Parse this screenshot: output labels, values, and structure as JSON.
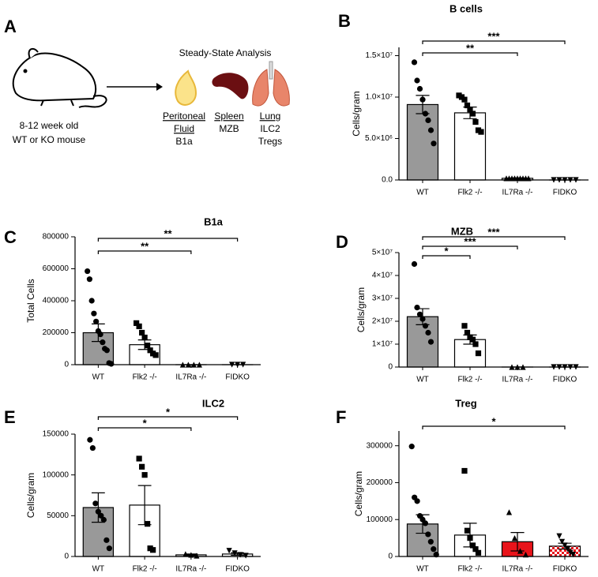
{
  "panel_a": {
    "label": "A",
    "heading": "Steady-State Analysis",
    "mouse": [
      "8-12 week old",
      "WT or KO mouse"
    ],
    "tissues": [
      {
        "name": [
          "Peritoneal",
          "Fluid"
        ],
        "cells": [
          "B1a"
        ]
      },
      {
        "name": [
          "Spleen"
        ],
        "cells": [
          "MZB"
        ]
      },
      {
        "name": [
          "Lung"
        ],
        "cells": [
          "ILC2",
          "Tregs"
        ]
      }
    ]
  },
  "chart_data": [
    {
      "type": "bar",
      "panel": "B",
      "title": "B cells",
      "ylabel": "Cells/gram",
      "categories": [
        "WT",
        "Flk2 -/-",
        "IL7Ra -/-",
        "FIDKO"
      ],
      "colors": [
        "#999999",
        "#ffffff",
        "#ffffff",
        "#ffffff"
      ],
      "markers": [
        "circle",
        "square",
        "triangle",
        "triangle-down"
      ],
      "values": [
        9100000,
        8100000,
        200000,
        0
      ],
      "errors": [
        1100000,
        700000,
        50000,
        0
      ],
      "points": [
        [
          14200000,
          12000000,
          11000000,
          9700000,
          8000000,
          7200000,
          6000000,
          4400000
        ],
        [
          10200000,
          10000000,
          9700000,
          9000000,
          8500000,
          8000000,
          7000000,
          6000000,
          5800000
        ],
        [
          200000,
          200000,
          200000,
          200000,
          200000,
          200000,
          200000,
          200000,
          200000
        ],
        [
          0,
          0,
          0,
          0,
          0
        ]
      ],
      "ylim": [
        0,
        16000000
      ],
      "yticks": [
        {
          "value": 0,
          "label": "0.0"
        },
        {
          "value": 5000000,
          "label": "5.0×10⁶"
        },
        {
          "value": 10000000,
          "label": "1.0×10⁷"
        },
        {
          "value": 15000000,
          "label": "1.5×10⁷"
        }
      ],
      "brackets": [
        {
          "between": [
            0,
            2
          ],
          "label": "**"
        },
        {
          "between": [
            0,
            3
          ],
          "label": "***"
        }
      ]
    },
    {
      "type": "bar",
      "panel": "C",
      "title": "B1a",
      "ylabel": "Total Cells",
      "categories": [
        "WT",
        "Flk2 -/-",
        "IL7Ra -/-",
        "FIDKO"
      ],
      "colors": [
        "#999999",
        "#ffffff",
        "#ffffff",
        "#ffffff"
      ],
      "markers": [
        "circle",
        "square",
        "triangle",
        "triangle-down"
      ],
      "values": [
        200000,
        125000,
        0,
        0
      ],
      "errors": [
        55000,
        30000,
        0,
        0
      ],
      "points": [
        [
          585000,
          535000,
          400000,
          320000,
          270000,
          210000,
          190000,
          140000,
          100000,
          90000,
          10000,
          5000
        ],
        [
          260000,
          240000,
          200000,
          170000,
          120000,
          90000,
          70000,
          60000
        ],
        [
          0,
          0,
          0,
          0
        ],
        [
          0,
          0,
          0
        ]
      ],
      "ylim": [
        0,
        800000
      ],
      "yticks": [
        0,
        200000,
        400000,
        600000,
        800000
      ],
      "brackets": [
        {
          "between": [
            0,
            2
          ],
          "label": "**"
        },
        {
          "between": [
            0,
            3
          ],
          "label": "**"
        }
      ]
    },
    {
      "type": "bar",
      "panel": "D",
      "title": "MZB",
      "ylabel": "Cells/gram",
      "categories": [
        "WT",
        "Flk2 -/-",
        "IL7Ra -/-",
        "FIDKO"
      ],
      "colors": [
        "#999999",
        "#ffffff",
        "#ffffff",
        "#ffffff"
      ],
      "markers": [
        "circle",
        "square",
        "triangle",
        "triangle-down"
      ],
      "values": [
        22000000,
        12000000,
        0,
        0
      ],
      "errors": [
        3500000,
        2000000,
        0,
        0
      ],
      "points": [
        [
          45000000,
          26000000,
          23000000,
          21000000,
          18000000,
          15000000,
          11000000
        ],
        [
          18000000,
          15000000,
          13000000,
          12000000,
          10000000,
          6000000
        ],
        [
          0,
          0,
          0
        ],
        [
          0,
          0,
          0,
          0,
          0
        ]
      ],
      "ylim": [
        0,
        50000000
      ],
      "yticks": [
        0,
        {
          "value": 10000000,
          "label": "1×10⁷"
        },
        {
          "value": 20000000,
          "label": "2×10⁷"
        },
        {
          "value": 30000000,
          "label": "3×10⁷"
        },
        {
          "value": 40000000,
          "label": "4×10⁷"
        },
        {
          "value": 50000000,
          "label": "5×10⁷"
        }
      ],
      "brackets": [
        {
          "between": [
            0,
            1
          ],
          "label": "*"
        },
        {
          "between": [
            0,
            2
          ],
          "label": "***"
        },
        {
          "between": [
            0,
            3
          ],
          "label": "***"
        }
      ]
    },
    {
      "type": "bar",
      "panel": "E",
      "title": "ILC2",
      "ylabel": "Cells/gram",
      "categories": [
        "WT",
        "Flk2 -/-",
        "IL7Ra -/-",
        "FIDKO"
      ],
      "colors": [
        "#999999",
        "#ffffff",
        "#ffffff",
        "#ffffff"
      ],
      "markers": [
        "circle",
        "square",
        "triangle",
        "triangle-down"
      ],
      "values": [
        60000,
        63000,
        2000,
        3000
      ],
      "errors": [
        18000,
        24000,
        1000,
        1500
      ],
      "points": [
        [
          143000,
          133000,
          65000,
          55000,
          50000,
          45000,
          20000,
          10000
        ],
        [
          120000,
          110000,
          100000,
          40000,
          10000,
          8000
        ],
        [
          3000,
          2000,
          1000
        ],
        [
          7000,
          4000,
          2000,
          1000
        ]
      ],
      "ylim": [
        0,
        150000
      ],
      "yticks": [
        0,
        50000,
        100000,
        150000
      ],
      "brackets": [
        {
          "between": [
            0,
            2
          ],
          "label": "*"
        },
        {
          "between": [
            0,
            3
          ],
          "label": "*"
        }
      ]
    },
    {
      "type": "bar",
      "panel": "F",
      "title": "Treg",
      "ylabel": "Cells/gram",
      "categories": [
        "WT",
        "Flk2 -/-",
        "IL7Ra -/-",
        "FIDKO"
      ],
      "colors": [
        "#999999",
        "#ffffff",
        "#e8141b",
        "#e8141b"
      ],
      "patterned": [
        false,
        false,
        false,
        true
      ],
      "markers": [
        "circle",
        "square",
        "triangle",
        "triangle-down"
      ],
      "values": [
        88000,
        58000,
        40000,
        28000
      ],
      "errors": [
        25000,
        32000,
        25000,
        8000
      ],
      "points": [
        [
          298000,
          160000,
          150000,
          110000,
          100000,
          90000,
          60000,
          40000,
          20000,
          5000
        ],
        [
          232000,
          70000,
          50000,
          30000,
          20000,
          10000
        ],
        [
          120000,
          50000,
          15000,
          5000
        ],
        [
          55000,
          40000,
          30000,
          20000,
          10000,
          5000
        ]
      ],
      "ylim": [
        0,
        340000
      ],
      "yticks": [
        0,
        100000,
        200000,
        300000
      ],
      "brackets": [
        {
          "between": [
            0,
            3
          ],
          "label": "*"
        }
      ]
    }
  ]
}
